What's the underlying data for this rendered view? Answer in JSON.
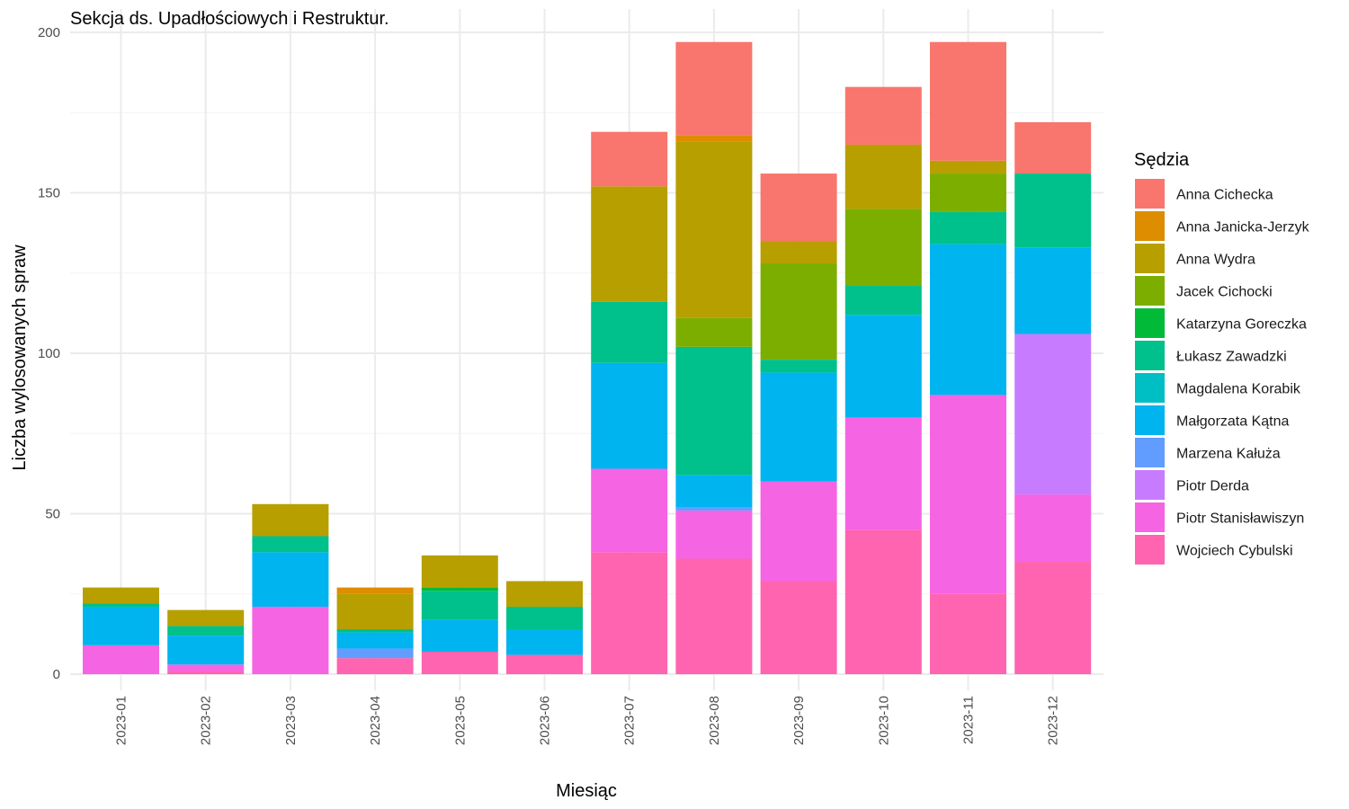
{
  "chart_data": {
    "type": "bar",
    "stacked": true,
    "title": "Sekcja ds. Upadłościowych i Restruktur.",
    "xlabel": "Miesiąc",
    "ylabel": "Liczba wylosowanych spraw",
    "ylim": [
      0,
      200
    ],
    "yticks": [
      0,
      50,
      100,
      150,
      200
    ],
    "grid": true,
    "legend_title": "Sędzia",
    "legend_position": "right",
    "categories": [
      "2023-01",
      "2023-02",
      "2023-03",
      "2023-04",
      "2023-05",
      "2023-06",
      "2023-07",
      "2023-08",
      "2023-09",
      "2023-10",
      "2023-11",
      "2023-12"
    ],
    "series": [
      {
        "name": "Anna Cichecka",
        "color": "#F8766D",
        "values": [
          0,
          0,
          0,
          0,
          0,
          0,
          17,
          29,
          21,
          18,
          37,
          16
        ]
      },
      {
        "name": "Anna Janicka-Jerzyk",
        "color": "#DE8C00",
        "values": [
          0,
          0,
          0,
          2,
          0,
          0,
          0,
          2,
          0,
          0,
          0,
          0
        ]
      },
      {
        "name": "Anna Wydra",
        "color": "#B79F00",
        "values": [
          5,
          5,
          10,
          11,
          10,
          8,
          36,
          55,
          7,
          20,
          4,
          0
        ]
      },
      {
        "name": "Jacek Cichocki",
        "color": "#7CAE00",
        "values": [
          0,
          0,
          0,
          0,
          0,
          0,
          0,
          9,
          30,
          24,
          12,
          0
        ]
      },
      {
        "name": "Katarzyna Goreczka",
        "color": "#00BA38",
        "values": [
          0,
          0,
          0,
          0,
          1,
          0,
          0,
          0,
          0,
          0,
          0,
          0
        ]
      },
      {
        "name": "Łukasz Zawadzki",
        "color": "#00C08B",
        "values": [
          1,
          3,
          5,
          1,
          9,
          7,
          19,
          40,
          4,
          9,
          10,
          23
        ]
      },
      {
        "name": "Magdalena Korabik",
        "color": "#00BFC4",
        "values": [
          0,
          0,
          0,
          0,
          0,
          0,
          0,
          0,
          0,
          0,
          0,
          0
        ]
      },
      {
        "name": "Małgorzata Kątna",
        "color": "#00B4F0",
        "values": [
          12,
          9,
          17,
          5,
          10,
          8,
          33,
          10,
          34,
          32,
          47,
          27
        ]
      },
      {
        "name": "Marzena Kałuża",
        "color": "#619CFF",
        "values": [
          0,
          0,
          0,
          3,
          0,
          0,
          0,
          1,
          0,
          0,
          0,
          0
        ]
      },
      {
        "name": "Piotr Derda",
        "color": "#C77CFF",
        "values": [
          0,
          0,
          0,
          0,
          0,
          0,
          0,
          0,
          0,
          0,
          0,
          50
        ]
      },
      {
        "name": "Piotr Stanisławiszyn",
        "color": "#F564E3",
        "values": [
          9,
          2,
          21,
          0,
          0,
          0,
          26,
          15,
          31,
          35,
          62,
          21
        ]
      },
      {
        "name": "Wojciech Cybulski",
        "color": "#FF64B0",
        "values": [
          0,
          1,
          0,
          5,
          7,
          6,
          38,
          36,
          29,
          45,
          25,
          35
        ]
      }
    ]
  }
}
